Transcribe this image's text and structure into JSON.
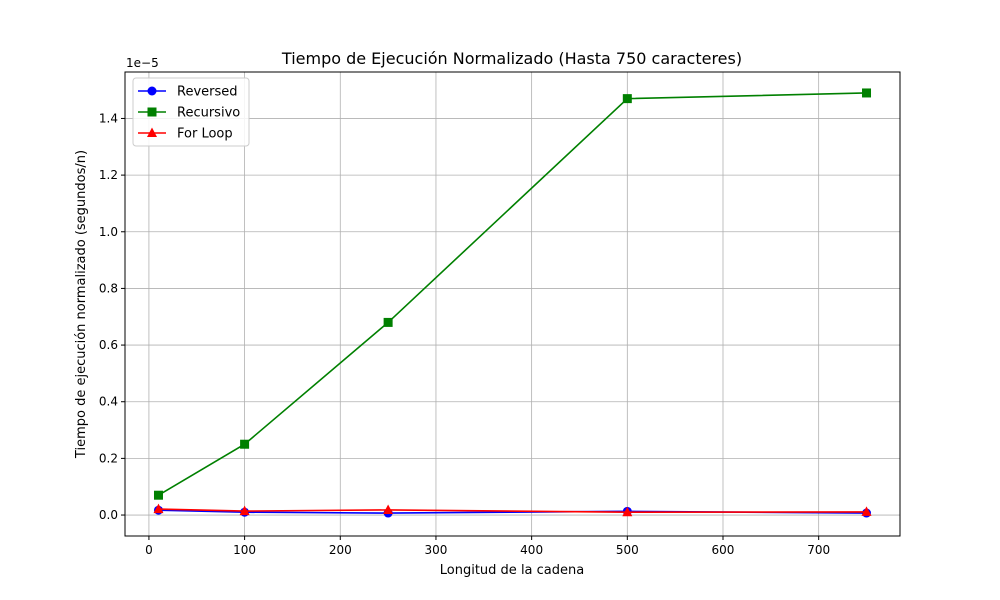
{
  "chart_data": {
    "type": "line",
    "title": "Tiempo de Ejecución Normalizado (Hasta 750 caracteres)",
    "xlabel": "Longitud de la cadena",
    "ylabel": "Tiempo de ejecución normalizado (segundos/n)",
    "y_offset_label": "1e−5",
    "x_ticks": [
      "0",
      "100",
      "200",
      "300",
      "400",
      "500",
      "600",
      "700"
    ],
    "y_ticks": [
      "0.0",
      "0.2",
      "0.4",
      "0.6",
      "0.8",
      "1.0",
      "1.2",
      "1.4"
    ],
    "xlim": [
      -25,
      785
    ],
    "ylim": [
      -0.074,
      1.564
    ],
    "y_scale_note": "values in units of 1e-5",
    "grid": true,
    "legend_position": "upper left",
    "x": [
      10,
      100,
      250,
      500,
      750
    ],
    "series": [
      {
        "name": "Reversed",
        "color": "#0000ff",
        "marker": "circle",
        "values": [
          0.017,
          0.01,
          0.007,
          0.013,
          0.007
        ]
      },
      {
        "name": "Recursivo",
        "color": "#008000",
        "marker": "square",
        "values": [
          0.07,
          0.25,
          0.68,
          1.47,
          1.49
        ]
      },
      {
        "name": "For Loop",
        "color": "#ff0000",
        "marker": "triangle",
        "values": [
          0.021,
          0.014,
          0.018,
          0.01,
          0.011
        ]
      }
    ]
  }
}
